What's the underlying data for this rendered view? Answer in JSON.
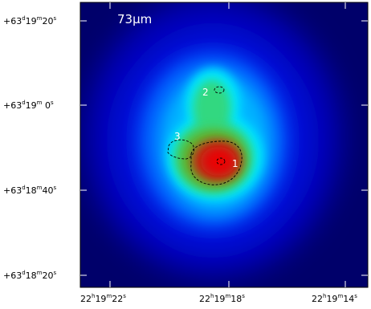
{
  "image": {
    "panel_label": "73μm",
    "description_colormap": [
      "#00006a",
      "#0000c8",
      "#0050ff",
      "#00c8ff",
      "#00ffb4",
      "#30e070",
      "#50c030",
      "#c03010",
      "#e00000"
    ],
    "frame_color": "#000000",
    "source_labels": [
      {
        "id": "1",
        "text": "1"
      },
      {
        "id": "2",
        "text": "2"
      },
      {
        "id": "3",
        "text": "3"
      }
    ],
    "dec_labels": [
      {
        "deg": "+63",
        "d": "d",
        "min": "19",
        "m": "m",
        "sec": "20",
        "s": "s"
      },
      {
        "deg": "+63",
        "d": "d",
        "min": "19",
        "m": "m",
        "sec": " 0",
        "s": "s"
      },
      {
        "deg": "+63",
        "d": "d",
        "min": "18",
        "m": "m",
        "sec": "40",
        "s": "s"
      },
      {
        "deg": "+63",
        "d": "d",
        "min": "18",
        "m": "m",
        "sec": "20",
        "s": "s"
      }
    ],
    "ra_labels": [
      {
        "hr": "22",
        "h": "h",
        "min": "19",
        "m": "m",
        "sec": "22",
        "s": "s"
      },
      {
        "hr": "22",
        "h": "h",
        "min": "19",
        "m": "m",
        "sec": "18",
        "s": "s"
      },
      {
        "hr": "22",
        "h": "h",
        "min": "19",
        "m": "m",
        "sec": "14",
        "s": "s"
      }
    ]
  }
}
